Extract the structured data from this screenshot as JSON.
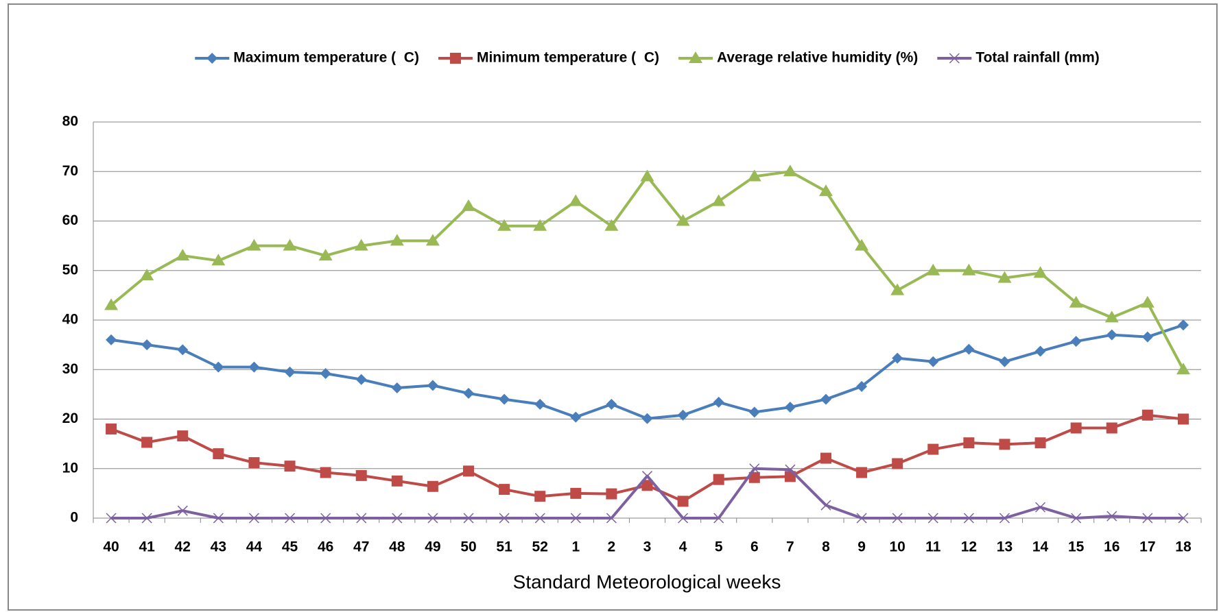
{
  "chart_data": {
    "type": "line",
    "x_label": "Standard Meteorological weeks",
    "categories": [
      "40",
      "41",
      "42",
      "43",
      "44",
      "45",
      "46",
      "47",
      "48",
      "49",
      "50",
      "51",
      "52",
      "1",
      "2",
      "3",
      "4",
      "5",
      "6",
      "7",
      "8",
      "9",
      "10",
      "11",
      "12",
      "13",
      "14",
      "15",
      "16",
      "17",
      "18"
    ],
    "series": [
      {
        "name": "Maximum temperature (  C)",
        "color": "#4a7ebb",
        "marker": "diamond",
        "values": [
          36,
          35,
          34,
          30.5,
          30.5,
          29.5,
          29.2,
          28,
          26.3,
          26.8,
          25.2,
          24,
          23,
          20.4,
          23,
          20.1,
          20.8,
          23.4,
          21.4,
          22.4,
          24,
          26.6,
          32.3,
          31.6,
          34.1,
          31.6,
          33.7,
          35.7,
          37,
          36.6,
          39
        ]
      },
      {
        "name": "Minimum temperature (  C)",
        "color": "#be4b48",
        "marker": "square",
        "values": [
          18,
          15.3,
          16.6,
          13,
          11.2,
          10.5,
          9.2,
          8.6,
          7.5,
          6.4,
          9.5,
          5.8,
          4.4,
          5,
          4.9,
          6.6,
          3.4,
          7.8,
          8.2,
          8.4,
          12.1,
          9.2,
          11,
          13.9,
          15.2,
          14.9,
          15.2,
          18.2,
          18.2,
          20.8,
          20
        ]
      },
      {
        "name": "Average relative humidity (%)",
        "color": "#98b954",
        "marker": "triangle",
        "values": [
          43,
          49,
          53,
          52,
          55,
          55,
          53,
          55,
          56,
          56,
          63,
          59,
          59,
          64,
          59,
          69,
          60,
          64,
          69,
          70,
          66,
          55,
          46,
          50,
          50,
          48.5,
          49.5,
          43.5,
          40.5,
          43.5,
          30
        ]
      },
      {
        "name": "Total rainfall (mm)",
        "color": "#7d60a0",
        "marker": "x",
        "values": [
          0,
          0,
          1.5,
          0,
          0,
          0,
          0,
          0,
          0,
          0,
          0,
          0,
          0,
          0,
          0,
          8.5,
          0,
          0,
          10,
          9.8,
          2.6,
          0,
          0,
          0,
          0,
          0,
          2.2,
          0,
          0.4,
          0,
          0
        ]
      }
    ],
    "ylim": [
      0,
      80
    ],
    "yticks": [
      0,
      10,
      20,
      30,
      40,
      50,
      60,
      70,
      80
    ],
    "grid": true,
    "legend": "top"
  }
}
